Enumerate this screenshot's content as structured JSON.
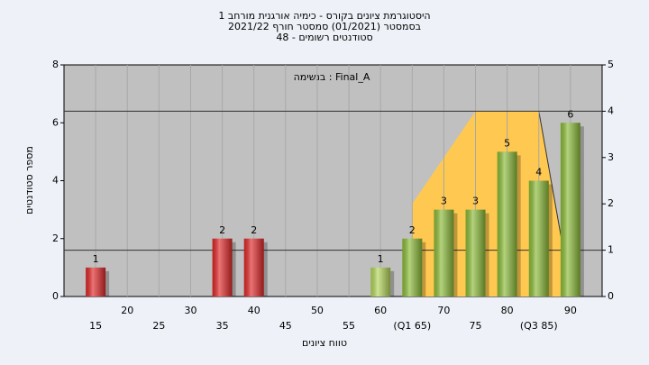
{
  "chart_data": {
    "type": "bar",
    "title": [
      "היסטוגרמת ציונים בקורס - כימיה אורגנית מורחב 1",
      "בסמסטר (01/2021) סמסטר חורף 2021/22",
      "סטודנטים רשומים - 48"
    ],
    "annotation": "בנשימה : Final_A",
    "ylabel": "מספר סטודנטים",
    "xlabel": "טווח ציונים",
    "x": [
      15,
      20,
      25,
      30,
      35,
      40,
      45,
      50,
      55,
      60,
      65,
      70,
      75,
      80,
      85,
      90
    ],
    "values": [
      1,
      0,
      0,
      0,
      2,
      2,
      0,
      0,
      0,
      1,
      2,
      3,
      3,
      5,
      4,
      6
    ],
    "value_labels": [
      "1",
      null,
      null,
      null,
      "2",
      "2",
      null,
      null,
      null,
      "1",
      "2",
      "3",
      "3",
      "5",
      "4",
      "6"
    ],
    "colors": [
      "#e02828",
      "#e02828",
      "#e02828",
      "#e02828",
      "#e02828",
      "#e02828",
      "#e02828",
      "#e02828",
      "#e02828",
      "#b4d65a",
      "#8cbb38",
      "#8cbb38",
      "#8cbb38",
      "#8cbb38",
      "#8cbb38",
      "#8cbb38"
    ],
    "area": {
      "axis": "y2",
      "color": "#ffc850",
      "x": [
        65,
        75,
        85,
        88.5
      ],
      "values": [
        2,
        4,
        4,
        1.3
      ]
    },
    "y2_lines": [
      1,
      4
    ],
    "xlim": [
      10,
      95
    ],
    "xticks": [
      15,
      20,
      25,
      30,
      35,
      40,
      45,
      50,
      55,
      60,
      {
        "value": 65,
        "label": "(Q1 65)"
      },
      70,
      75,
      80,
      {
        "value": 85,
        "label": "(Q3 85)"
      },
      90
    ],
    "ylim": [
      0,
      8
    ],
    "yticks": [
      0,
      2,
      4,
      6,
      8
    ],
    "y2lim": [
      0,
      5
    ],
    "y2ticks": [
      0,
      1,
      2,
      3,
      4,
      5
    ],
    "grid": true
  }
}
